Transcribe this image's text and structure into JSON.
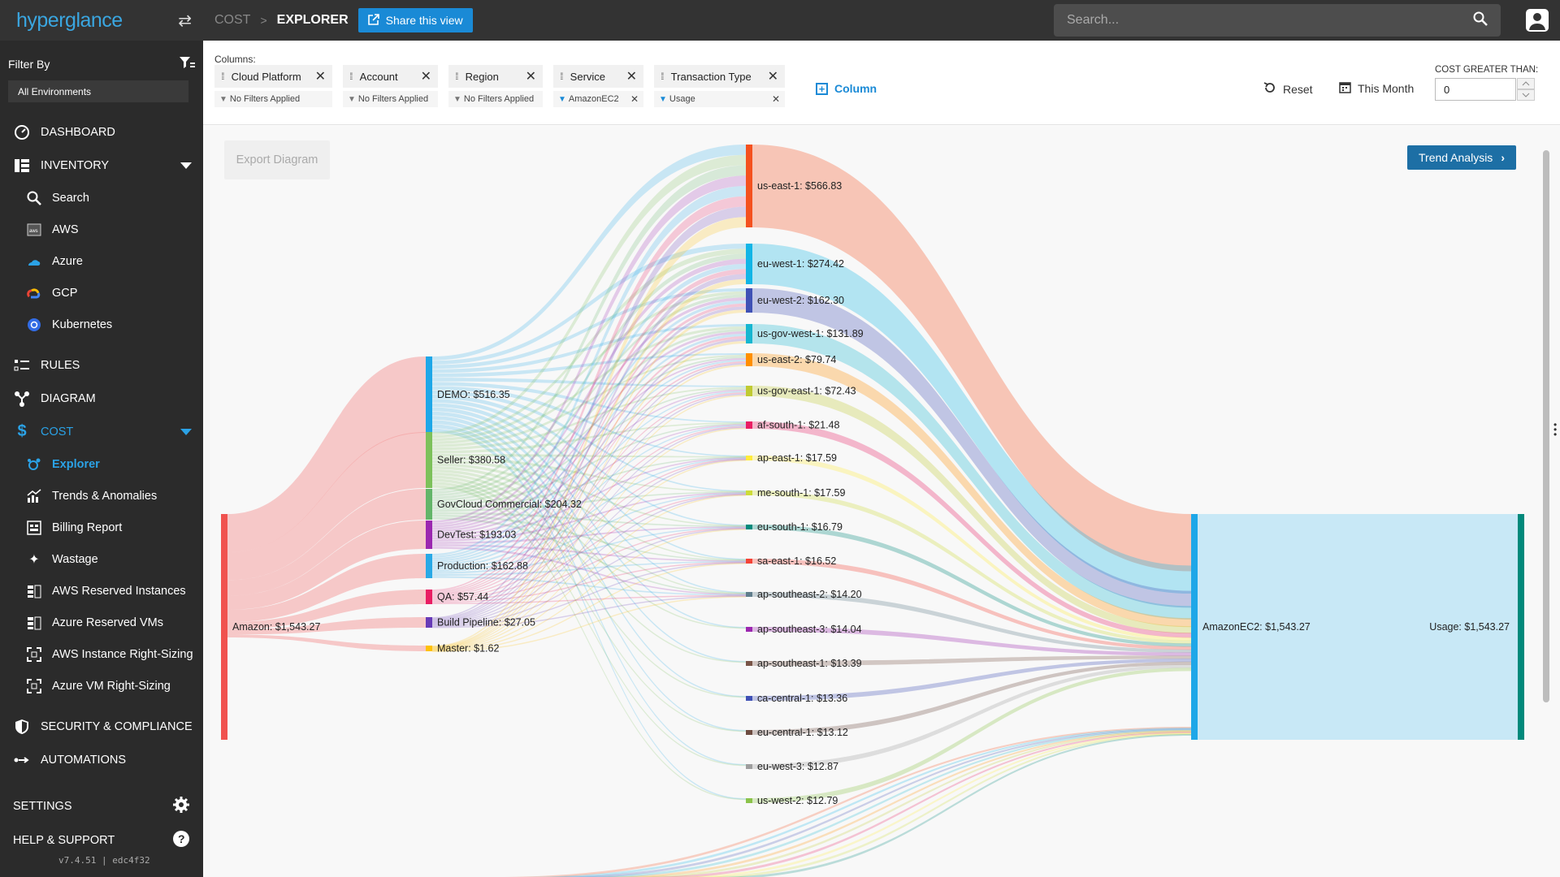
{
  "app": {
    "logo": "hyperglance"
  },
  "sidebar": {
    "filter_by": "Filter By",
    "environment": "All Environments",
    "items": [
      {
        "label": "DASHBOARD",
        "icon": "dashboard-icon"
      },
      {
        "label": "INVENTORY",
        "icon": "inventory-icon"
      },
      {
        "label": "Search",
        "icon": "search-icon"
      },
      {
        "label": "AWS",
        "icon": "aws-icon"
      },
      {
        "label": "Azure",
        "icon": "azure-icon"
      },
      {
        "label": "GCP",
        "icon": "gcp-icon"
      },
      {
        "label": "Kubernetes",
        "icon": "kubernetes-icon"
      },
      {
        "label": "RULES",
        "icon": "rules-icon"
      },
      {
        "label": "DIAGRAM",
        "icon": "diagram-icon"
      },
      {
        "label": "COST",
        "icon": "dollar-icon"
      },
      {
        "label": "Explorer",
        "icon": "explorer-icon"
      },
      {
        "label": "Trends & Anomalies",
        "icon": "trends-icon"
      },
      {
        "label": "Billing Report",
        "icon": "billing-icon"
      },
      {
        "label": "Wastage",
        "icon": "wastage-icon"
      },
      {
        "label": "AWS Reserved Instances",
        "icon": "reserved-icon"
      },
      {
        "label": "Azure Reserved VMs",
        "icon": "reserved-icon"
      },
      {
        "label": "AWS Instance Right-Sizing",
        "icon": "rightsizing-icon"
      },
      {
        "label": "Azure VM Right-Sizing",
        "icon": "rightsizing-icon"
      },
      {
        "label": "SECURITY & COMPLIANCE",
        "icon": "shield-icon"
      },
      {
        "label": "AUTOMATIONS",
        "icon": "automations-icon"
      }
    ],
    "settings": "SETTINGS",
    "help": "HELP & SUPPORT",
    "version": "v7.4.51 | edc4f32"
  },
  "topbar": {
    "breadcrumb_parent": "COST",
    "breadcrumb_current": "EXPLORER",
    "share_label": "Share this view",
    "search_placeholder": "Search..."
  },
  "columns": {
    "label": "Columns:",
    "chips": [
      {
        "name": "Cloud Platform",
        "filter": "No Filters Applied"
      },
      {
        "name": "Account",
        "filter": "No Filters Applied"
      },
      {
        "name": "Region",
        "filter": "No Filters Applied"
      },
      {
        "name": "Service",
        "filter": "AmazonEC2"
      },
      {
        "name": "Transaction Type",
        "filter": "Usage"
      }
    ],
    "add_column": "Column",
    "reset": "Reset",
    "period": "This Month",
    "cost_label": "COST GREATER THAN:",
    "cost_value": "0"
  },
  "diagram": {
    "export_label": "Export Diagram",
    "trend_label": "Trend Analysis",
    "platform": {
      "label": "Amazon: $1,543.27",
      "color": "#f0524f"
    },
    "accounts": [
      {
        "label": "DEMO: $516.35",
        "color": "#1ea7e8"
      },
      {
        "label": "Seller: $380.58",
        "color": "#7cc15a"
      },
      {
        "label": "GovCloud Commercial: $204.32",
        "color": "#63b569"
      },
      {
        "label": "DevTest: $193.03",
        "color": "#9b27b0"
      },
      {
        "label": "Production: $162.88",
        "color": "#29a9e6"
      },
      {
        "label": "QA: $57.44",
        "color": "#e91e63"
      },
      {
        "label": "Build Pipeline: $27.05",
        "color": "#673ab7"
      },
      {
        "label": "Master: $1.62",
        "color": "#ffc107"
      }
    ],
    "regions": [
      {
        "label": "us-east-1: $566.83",
        "color": "#f4511e"
      },
      {
        "label": "eu-west-1: $274.42",
        "color": "#12b5e6"
      },
      {
        "label": "eu-west-2: $162.30",
        "color": "#3f51b5"
      },
      {
        "label": "us-gov-west-1: $131.89",
        "color": "#16b6d0"
      },
      {
        "label": "us-east-2: $79.74",
        "color": "#ff8f00"
      },
      {
        "label": "us-gov-east-1: $72.43",
        "color": "#c0ca33"
      },
      {
        "label": "af-south-1: $21.48",
        "color": "#e91e63"
      },
      {
        "label": "ap-east-1: $17.59",
        "color": "#ffeb3b"
      },
      {
        "label": "me-south-1: $17.59",
        "color": "#cddc39"
      },
      {
        "label": "eu-south-1: $16.79",
        "color": "#00897b"
      },
      {
        "label": "sa-east-1: $16.52",
        "color": "#f44336"
      },
      {
        "label": "ap-southeast-2: $14.20",
        "color": "#607d8b"
      },
      {
        "label": "ap-southeast-3: $14.04",
        "color": "#9c27b0"
      },
      {
        "label": "ap-southeast-1: $13.39",
        "color": "#795548"
      },
      {
        "label": "ca-central-1: $13.36",
        "color": "#3f51b5"
      },
      {
        "label": "eu-central-1: $13.12",
        "color": "#6d4c41"
      },
      {
        "label": "eu-west-3: $12.87",
        "color": "#9e9e9e"
      },
      {
        "label": "us-west-2: $12.79",
        "color": "#8bc34a"
      }
    ],
    "service": {
      "label": "AmazonEC2: $1,543.27",
      "color": "#1ea7e8"
    },
    "transaction": {
      "label": "Usage: $1,543.27",
      "color": "#00897b"
    }
  }
}
